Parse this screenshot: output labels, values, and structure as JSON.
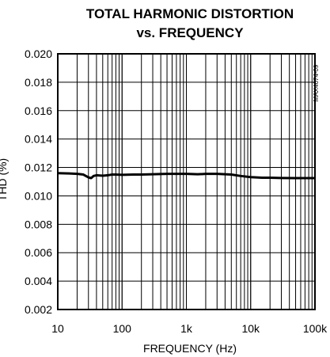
{
  "chart_data": {
    "type": "line",
    "title_line1": "TOTAL HARMONIC DISTORTION",
    "title_line2": "vs. FREQUENCY",
    "xlabel": "FREQUENCY (Hz)",
    "ylabel": "THD (%)",
    "figure_code": "MAX4674-09",
    "x_scale": "log",
    "xlim": [
      10,
      100000
    ],
    "ylim": [
      0.002,
      0.02
    ],
    "grid": true,
    "x_ticks": [
      {
        "value": 10,
        "label": "10"
      },
      {
        "value": 100,
        "label": "100"
      },
      {
        "value": 1000,
        "label": "1k"
      },
      {
        "value": 10000,
        "label": "10k"
      },
      {
        "value": 100000,
        "label": "100k"
      }
    ],
    "y_ticks": [
      {
        "value": 0.002,
        "label": "0.002"
      },
      {
        "value": 0.004,
        "label": "0.004"
      },
      {
        "value": 0.006,
        "label": "0.006"
      },
      {
        "value": 0.008,
        "label": "0.008"
      },
      {
        "value": 0.01,
        "label": "0.010"
      },
      {
        "value": 0.012,
        "label": "0.012"
      },
      {
        "value": 0.014,
        "label": "0.014"
      },
      {
        "value": 0.016,
        "label": "0.016"
      },
      {
        "value": 0.018,
        "label": "0.018"
      },
      {
        "value": 0.02,
        "label": "0.020"
      }
    ],
    "series": [
      {
        "x": [
          10,
          15,
          20,
          25,
          30,
          33,
          36,
          40,
          50,
          60,
          70,
          80,
          100,
          150,
          200,
          300,
          500,
          700,
          1000,
          1500,
          2000,
          3000,
          5000,
          7000,
          10000,
          15000,
          20000,
          30000,
          50000,
          70000,
          100000
        ],
        "y": [
          0.0116,
          0.01158,
          0.01155,
          0.0115,
          0.0113,
          0.01125,
          0.0114,
          0.01145,
          0.01142,
          0.01145,
          0.0115,
          0.0115,
          0.01148,
          0.0115,
          0.0115,
          0.01152,
          0.01155,
          0.01155,
          0.01155,
          0.01152,
          0.01155,
          0.01155,
          0.0115,
          0.0114,
          0.01132,
          0.01128,
          0.01128,
          0.01126,
          0.01125,
          0.01125,
          0.01125
        ]
      }
    ]
  }
}
